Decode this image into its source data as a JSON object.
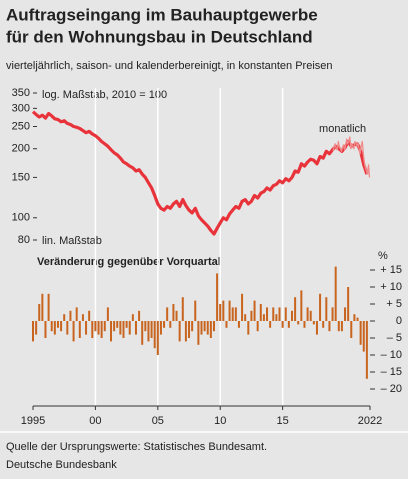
{
  "title": [
    "Auftragseingang im Bauhauptgewerbe",
    "für den Wohnungsbau in Deutschland"
  ],
  "subtitle": "vierteljährlich, saison- und kalenderbereinigt, in konstanten Preisen",
  "source": [
    "Quelle der Ursprungswerte: Statistisches Bundesamt.",
    "Deutsche Bundesbank"
  ],
  "chart_data": [
    {
      "type": "line",
      "axis_label": "log. Maßstab, 2010 = 100",
      "log_scale": true,
      "xlim": [
        1995,
        2022
      ],
      "ylim": [
        80,
        350
      ],
      "yticks": [
        80,
        100,
        150,
        200,
        250,
        300,
        350
      ],
      "series": [
        {
          "name": null,
          "color": "#e8333b",
          "x": [
            1995,
            1995.25,
            1995.5,
            1995.75,
            1996,
            1996.25,
            1996.5,
            1996.75,
            1997,
            1997.25,
            1997.5,
            1997.75,
            1998,
            1998.25,
            1998.5,
            1998.75,
            1999,
            1999.25,
            1999.5,
            1999.75,
            2000,
            2000.25,
            2000.5,
            2000.75,
            2001,
            2001.25,
            2001.5,
            2001.75,
            2002,
            2002.25,
            2002.5,
            2002.75,
            2003,
            2003.25,
            2003.5,
            2003.75,
            2004,
            2004.25,
            2004.5,
            2004.75,
            2005,
            2005.25,
            2005.5,
            2005.75,
            2006,
            2006.25,
            2006.5,
            2006.75,
            2007,
            2007.25,
            2007.5,
            2007.75,
            2008,
            2008.25,
            2008.5,
            2008.75,
            2009,
            2009.25,
            2009.5,
            2009.75,
            2010,
            2010.25,
            2010.5,
            2010.75,
            2011,
            2011.25,
            2011.5,
            2011.75,
            2012,
            2012.25,
            2012.5,
            2012.75,
            2013,
            2013.25,
            2013.5,
            2013.75,
            2014,
            2014.25,
            2014.5,
            2014.75,
            2015,
            2015.25,
            2015.5,
            2015.75,
            2016,
            2016.25,
            2016.5,
            2016.75,
            2017,
            2017.25,
            2017.5,
            2017.75,
            2018,
            2018.25,
            2018.5,
            2018.75,
            2019,
            2019.25,
            2019.5,
            2019.75,
            2020,
            2020.25,
            2020.5,
            2020.75,
            2021,
            2021.25,
            2021.5,
            2021.75
          ],
          "values": [
            290,
            282,
            275,
            280,
            272,
            285,
            278,
            270,
            268,
            262,
            265,
            258,
            255,
            250,
            248,
            245,
            240,
            235,
            238,
            232,
            228,
            222,
            215,
            210,
            205,
            198,
            192,
            188,
            182,
            175,
            172,
            168,
            165,
            160,
            162,
            155,
            150,
            142,
            135,
            125,
            115,
            110,
            108,
            112,
            110,
            115,
            118,
            112,
            120,
            113,
            108,
            105,
            110,
            102,
            98,
            95,
            92,
            88,
            85,
            90,
            95,
            100,
            98,
            104,
            108,
            112,
            110,
            118,
            120,
            115,
            118,
            125,
            122,
            128,
            130,
            135,
            132,
            138,
            140,
            145,
            142,
            148,
            145,
            150,
            160,
            158,
            172,
            168,
            175,
            180,
            178,
            172,
            185,
            182,
            195,
            190,
            198,
            205,
            200,
            195,
            202,
            215,
            205,
            208,
            210,
            195,
            170,
            155
          ]
        },
        {
          "name": "monatlich",
          "color": "#f08a8a",
          "x": [
            2019.04,
            2019.13,
            2019.21,
            2019.29,
            2019.38,
            2019.46,
            2019.54,
            2019.63,
            2019.71,
            2019.79,
            2019.88,
            2019.96,
            2020.04,
            2020.13,
            2020.21,
            2020.29,
            2020.38,
            2020.46,
            2020.54,
            2020.63,
            2020.71,
            2020.79,
            2020.88,
            2020.96,
            2021.04,
            2021.13,
            2021.21,
            2021.29,
            2021.38,
            2021.46,
            2021.54,
            2021.63,
            2021.71,
            2021.79,
            2021.88,
            2021.96
          ],
          "values": [
            195,
            205,
            210,
            200,
            198,
            215,
            205,
            200,
            195,
            202,
            208,
            198,
            205,
            220,
            210,
            215,
            225,
            200,
            210,
            205,
            200,
            215,
            210,
            205,
            212,
            200,
            190,
            205,
            215,
            190,
            175,
            165,
            160,
            155,
            170,
            150
          ]
        }
      ]
    },
    {
      "type": "bar",
      "axis_label": "lin. Maßstab",
      "subtitle": "Veränderung gegenüber Vorquartal",
      "unit": "%",
      "color": "#c8641e",
      "xlim": [
        1995,
        2022
      ],
      "ylim": [
        -25,
        20
      ],
      "xticks": [
        1995,
        {
          "value": 2000,
          "label": "00"
        },
        {
          "value": 2005,
          "label": "05"
        },
        {
          "value": 2010,
          "label": "10"
        },
        {
          "value": 2015,
          "label": "15"
        },
        2022
      ],
      "yticks": [
        {
          "value": 15,
          "label": "+ 15"
        },
        {
          "value": 10,
          "label": "+ 10"
        },
        {
          "value": 5,
          "label": "+ 5"
        },
        0,
        {
          "value": -5,
          "label": "– 5"
        },
        {
          "value": -10,
          "label": "– 10"
        },
        {
          "value": -15,
          "label": "– 15"
        },
        {
          "value": -20,
          "label": "– 20"
        }
      ],
      "x": [
        1995,
        1995.25,
        1995.5,
        1995.75,
        1996,
        1996.25,
        1996.5,
        1996.75,
        1997,
        1997.25,
        1997.5,
        1997.75,
        1998,
        1998.25,
        1998.5,
        1998.75,
        1999,
        1999.25,
        1999.5,
        1999.75,
        2000,
        2000.25,
        2000.5,
        2000.75,
        2001,
        2001.25,
        2001.5,
        2001.75,
        2002,
        2002.25,
        2002.5,
        2002.75,
        2003,
        2003.25,
        2003.5,
        2003.75,
        2004,
        2004.25,
        2004.5,
        2004.75,
        2005,
        2005.25,
        2005.5,
        2005.75,
        2006,
        2006.25,
        2006.5,
        2006.75,
        2007,
        2007.25,
        2007.5,
        2007.75,
        2008,
        2008.25,
        2008.5,
        2008.75,
        2009,
        2009.25,
        2009.5,
        2009.75,
        2010,
        2010.25,
        2010.5,
        2010.75,
        2011,
        2011.25,
        2011.5,
        2011.75,
        2012,
        2012.25,
        2012.5,
        2012.75,
        2013,
        2013.25,
        2013.5,
        2013.75,
        2014,
        2014.25,
        2014.5,
        2014.75,
        2015,
        2015.25,
        2015.5,
        2015.75,
        2016,
        2016.25,
        2016.5,
        2016.75,
        2017,
        2017.25,
        2017.5,
        2017.75,
        2018,
        2018.25,
        2018.5,
        2018.75,
        2019,
        2019.25,
        2019.5,
        2019.75,
        2020,
        2020.25,
        2020.5,
        2020.75,
        2021,
        2021.25,
        2021.5,
        2021.75
      ],
      "values": [
        -6,
        -4,
        5,
        8,
        -5,
        8,
        -3,
        -4,
        -2,
        -3,
        2,
        -4,
        3,
        -6,
        4,
        -5,
        2,
        -4,
        3,
        -5,
        -3,
        -4,
        -5,
        -3,
        4,
        -6,
        -3,
        -2,
        -4,
        -5,
        -2,
        -4,
        2,
        -4,
        3,
        -7,
        -3,
        -6,
        -5,
        -8,
        -10,
        -4,
        -2,
        4,
        -2,
        5,
        3,
        -6,
        7,
        -6,
        -5,
        -3,
        6,
        -7,
        -4,
        -3,
        -4,
        -5,
        -3,
        14,
        5,
        6,
        -2,
        6,
        4,
        4,
        -2,
        8,
        2,
        -4,
        3,
        6,
        -3,
        5,
        2,
        4,
        -2,
        4,
        2,
        4,
        -2,
        4,
        -2,
        3,
        7,
        -1,
        9,
        -2,
        4,
        3,
        -1,
        -4,
        8,
        -2,
        7,
        -3,
        4,
        16,
        -3,
        -3,
        4,
        10,
        -5,
        2,
        1,
        -7,
        -9,
        -17
      ]
    }
  ]
}
